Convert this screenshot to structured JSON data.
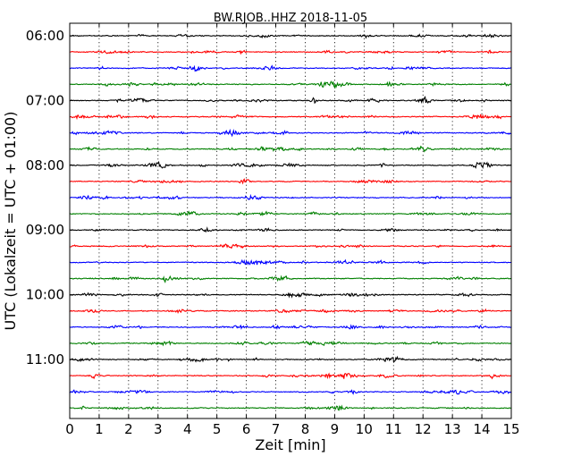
{
  "chart_data": {
    "type": "line",
    "title": "BW.RJOB..HHZ 2018-11-05",
    "xlabel": "Zeit  [min]",
    "ylabel": "UTC (Lokalzeit = UTC + 01:00)",
    "xlim": [
      0,
      15
    ],
    "x_ticks": [
      0,
      1,
      2,
      3,
      4,
      5,
      6,
      7,
      8,
      9,
      10,
      11,
      12,
      13,
      14,
      15
    ],
    "x_tick_labels": [
      "0",
      "1",
      "2",
      "3",
      "4",
      "5",
      "6",
      "7",
      "8",
      "9",
      "10",
      "11",
      "12",
      "13",
      "14",
      "15"
    ],
    "y_tick_labels": [
      "06:00",
      "07:00",
      "08:00",
      "09:00",
      "10:00",
      "11:00"
    ],
    "y_tick_start_times": [
      "06:00",
      "07:00",
      "08:00",
      "09:00",
      "10:00",
      "11:00"
    ],
    "grid": "vertical dotted",
    "color_cycle": [
      "#000000",
      "#ff0000",
      "#0000ff",
      "#008000"
    ],
    "trace_minutes": 15,
    "traces": [
      {
        "start": "06:00",
        "color": "#000000"
      },
      {
        "start": "06:15",
        "color": "#ff0000"
      },
      {
        "start": "06:30",
        "color": "#0000ff"
      },
      {
        "start": "06:45",
        "color": "#008000",
        "events_min": [
          9.1
        ]
      },
      {
        "start": "07:00",
        "color": "#000000"
      },
      {
        "start": "07:15",
        "color": "#ff0000"
      },
      {
        "start": "07:30",
        "color": "#0000ff"
      },
      {
        "start": "07:45",
        "color": "#008000"
      },
      {
        "start": "08:00",
        "color": "#000000",
        "events_min": [
          3.0
        ]
      },
      {
        "start": "08:15",
        "color": "#ff0000"
      },
      {
        "start": "08:30",
        "color": "#0000ff"
      },
      {
        "start": "08:45",
        "color": "#008000"
      },
      {
        "start": "09:00",
        "color": "#000000"
      },
      {
        "start": "09:15",
        "color": "#ff0000"
      },
      {
        "start": "09:30",
        "color": "#0000ff"
      },
      {
        "start": "09:45",
        "color": "#008000"
      },
      {
        "start": "10:00",
        "color": "#000000"
      },
      {
        "start": "10:15",
        "color": "#ff0000"
      },
      {
        "start": "10:30",
        "color": "#0000ff"
      },
      {
        "start": "10:45",
        "color": "#008000"
      },
      {
        "start": "11:00",
        "color": "#000000",
        "events_min": [
          10.9
        ]
      },
      {
        "start": "11:15",
        "color": "#ff0000"
      },
      {
        "start": "11:30",
        "color": "#0000ff"
      },
      {
        "start": "11:45",
        "color": "#008000"
      }
    ]
  }
}
